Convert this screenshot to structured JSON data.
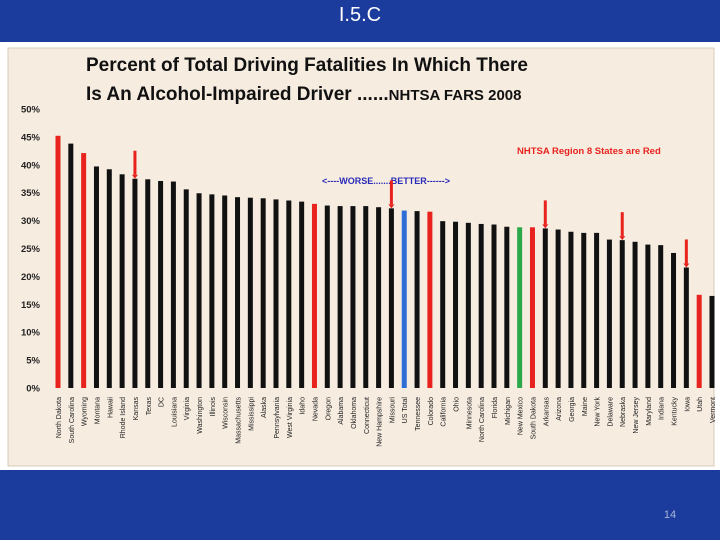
{
  "slide": {
    "title": "I.5.C",
    "page_number": "14"
  },
  "colors": {
    "background": "#1b3c9c",
    "plot_background": "#f6ece0",
    "black_bar": "#111111",
    "red_bar": "#e8231e",
    "blue_bar": "#2d6fd6",
    "green_bar": "#2aa84a",
    "annotation_red": "#e8231e",
    "worse_better_text": "#2a2ab8"
  },
  "chart_data": {
    "type": "bar",
    "title_line1": "Percent of Total Driving Fatalities In Which There",
    "title_line2_part1": "Is An Alcohol-Impaired Driver ......",
    "title_line2_part2": "NHTSA  FARS 2008",
    "annotation_region": "NHTSA  Region 8 States are Red",
    "annotation_direction": "<----WORSE.......BETTER------>",
    "ylim": [
      0,
      50
    ],
    "yticks": [
      0,
      5,
      10,
      15,
      20,
      25,
      30,
      35,
      40,
      45,
      50
    ],
    "ytick_labels": [
      "0%",
      "5%",
      "10%",
      "15%",
      "20%",
      "25%",
      "30%",
      "35%",
      "40%",
      "45%",
      "50%"
    ],
    "categories": [
      "North Dakota",
      "South Carolina",
      "Wyoming",
      "Montana",
      "Hawaii",
      "Rhode Island",
      "Kansas",
      "Texas",
      "DC",
      "Louisiana",
      "Virginia",
      "Washington",
      "Illinois",
      "Wisconsin",
      "Massachusetts",
      "Mississippi",
      "Alaska",
      "Pennsylvania",
      "West Virginia",
      "Idaho",
      "Nevada",
      "Oregon",
      "Alabama",
      "Oklahoma",
      "Connecticut",
      "New Hampshire",
      "Missouri",
      "US Total",
      "Tennessee",
      "Colorado",
      "California",
      "Ohio",
      "Minnesota",
      "North Carolina",
      "Florida",
      "Michigan",
      "New Mexico",
      "South Dakota",
      "Arkansas",
      "Arizona",
      "Georgia",
      "Maine",
      "New York",
      "Delaware",
      "Nebraska",
      "New Jersey",
      "Maryland",
      "Indiana",
      "Kentucky",
      "Iowa",
      "Utah",
      "Vermont"
    ],
    "values": [
      45.2,
      43.8,
      42.1,
      39.7,
      39.2,
      38.3,
      37.5,
      37.4,
      37.1,
      37.0,
      35.6,
      34.9,
      34.7,
      34.5,
      34.2,
      34.1,
      34.0,
      33.8,
      33.6,
      33.4,
      33.0,
      32.7,
      32.6,
      32.6,
      32.6,
      32.4,
      32.2,
      31.8,
      31.7,
      31.6,
      29.9,
      29.8,
      29.6,
      29.4,
      29.3,
      28.9,
      28.8,
      28.8,
      28.6,
      28.4,
      28.0,
      27.8,
      27.8,
      26.6,
      26.5,
      26.2,
      25.7,
      25.6,
      24.2,
      21.6,
      16.7,
      16.5
    ],
    "bar_colors": [
      "red",
      "black",
      "red",
      "black",
      "black",
      "black",
      "black",
      "black",
      "black",
      "black",
      "black",
      "black",
      "black",
      "black",
      "black",
      "black",
      "black",
      "black",
      "black",
      "black",
      "red",
      "black",
      "black",
      "black",
      "black",
      "black",
      "black",
      "blue",
      "black",
      "red",
      "black",
      "black",
      "black",
      "black",
      "black",
      "black",
      "green",
      "red",
      "black",
      "black",
      "black",
      "black",
      "black",
      "black",
      "black",
      "black",
      "black",
      "black",
      "black",
      "black",
      "red",
      "black"
    ],
    "marked_states": [
      "Kansas",
      "Missouri",
      "Arkansas",
      "Nebraska",
      "Iowa"
    ]
  }
}
